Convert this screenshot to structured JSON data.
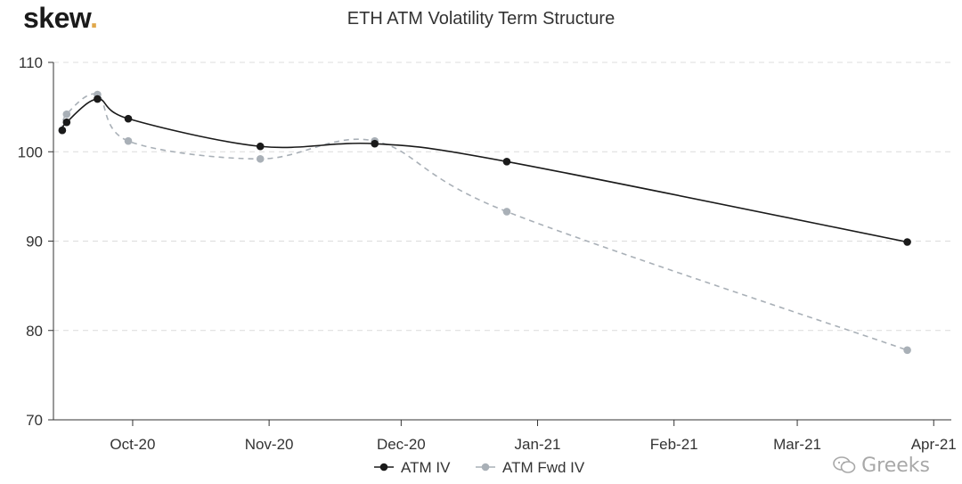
{
  "brand": {
    "logo_text": "skew",
    "logo_dot": "."
  },
  "watermark": {
    "text": "Greeks"
  },
  "chart_data": {
    "type": "line",
    "title": "ETH ATM Volatility Term Structure",
    "xlabel": "",
    "ylabel": "",
    "ylim": [
      70,
      110
    ],
    "yticks": [
      70,
      80,
      90,
      100,
      110
    ],
    "xlim": [
      "2020-09-13",
      "2021-04-05"
    ],
    "xticks": [
      {
        "label": "Oct-20",
        "date": "2020-10-01"
      },
      {
        "label": "Nov-20",
        "date": "2020-11-01"
      },
      {
        "label": "Dec-20",
        "date": "2020-12-01"
      },
      {
        "label": "Jan-21",
        "date": "2021-01-01"
      },
      {
        "label": "Feb-21",
        "date": "2021-02-01"
      },
      {
        "label": "Mar-21",
        "date": "2021-03-01"
      },
      {
        "label": "Apr-21",
        "date": "2021-04-01"
      }
    ],
    "grid": "horizontal-dashed",
    "legend_position": "bottom-center",
    "series": [
      {
        "name": "ATM IV",
        "color": "#1a1a1a",
        "dash": false,
        "points": [
          {
            "date": "2020-09-15",
            "value": 102.4
          },
          {
            "date": "2020-09-16",
            "value": 103.3
          },
          {
            "date": "2020-09-23",
            "value": 105.9
          },
          {
            "date": "2020-09-30",
            "value": 103.7
          },
          {
            "date": "2020-10-30",
            "value": 100.6
          },
          {
            "date": "2020-11-25",
            "value": 100.9
          },
          {
            "date": "2020-12-25",
            "value": 98.9
          },
          {
            "date": "2021-03-26",
            "value": 89.9
          }
        ]
      },
      {
        "name": "ATM Fwd IV",
        "color": "#a9b0b7",
        "dash": true,
        "points": [
          {
            "date": "2020-09-15",
            "value": 102.4
          },
          {
            "date": "2020-09-16",
            "value": 104.2
          },
          {
            "date": "2020-09-23",
            "value": 106.4
          },
          {
            "date": "2020-09-30",
            "value": 101.2
          },
          {
            "date": "2020-10-30",
            "value": 99.2
          },
          {
            "date": "2020-11-25",
            "value": 101.2
          },
          {
            "date": "2020-12-25",
            "value": 93.3
          },
          {
            "date": "2021-03-26",
            "value": 77.8
          }
        ]
      }
    ]
  }
}
